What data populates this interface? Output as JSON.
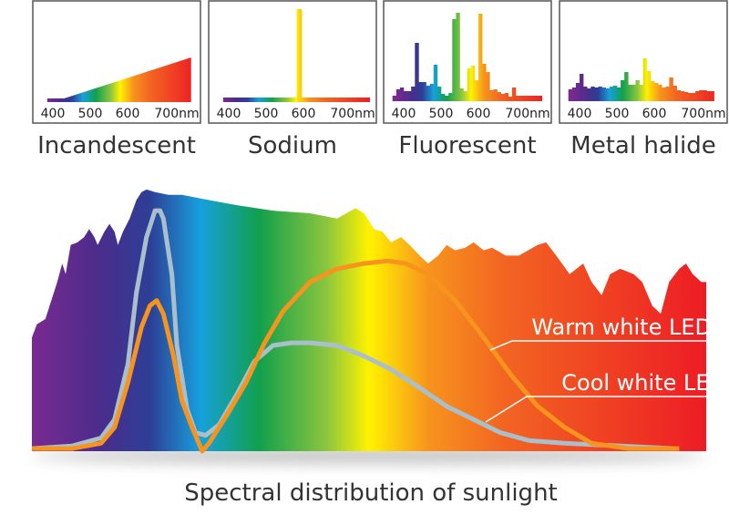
{
  "colors": {
    "spectrum": [
      {
        "nm": 380,
        "color": "#7a2a8f"
      },
      {
        "nm": 420,
        "color": "#4b2c8c"
      },
      {
        "nm": 450,
        "color": "#2d3f96"
      },
      {
        "nm": 480,
        "color": "#17a0dc"
      },
      {
        "nm": 515,
        "color": "#12a04c"
      },
      {
        "nm": 555,
        "color": "#8cc63f"
      },
      {
        "nm": 580,
        "color": "#fff200"
      },
      {
        "nm": 615,
        "color": "#f7941d"
      },
      {
        "nm": 660,
        "color": "#f26522"
      },
      {
        "nm": 780,
        "color": "#ed1c24"
      }
    ],
    "warm_led": "#f7941d",
    "cool_led": "#a9bfcc",
    "panel_border": "#555555"
  },
  "chart_data": [
    {
      "type": "area",
      "title": "Incandescent",
      "x_unit": "nm",
      "xticks": [
        "400",
        "500",
        "600",
        "700nm"
      ],
      "xtick_values": [
        400,
        500,
        600,
        700
      ],
      "points": [
        [
          380,
          0
        ],
        [
          430,
          0
        ],
        [
          780,
          45
        ]
      ]
    },
    {
      "type": "area",
      "title": "Sodium",
      "x_unit": "nm",
      "xticks": [
        "400",
        "500",
        "600",
        "700nm"
      ],
      "xtick_values": [
        400,
        500,
        600,
        700
      ],
      "points": [
        [
          380,
          0
        ],
        [
          582,
          0
        ],
        [
          582,
          98
        ],
        [
          596,
          98
        ],
        [
          596,
          0
        ],
        [
          780,
          0
        ]
      ]
    },
    {
      "type": "bar",
      "title": "Fluorescent",
      "x_unit": "nm",
      "xticks": [
        "400",
        "500",
        "600",
        "700nm"
      ],
      "xtick_values": [
        400,
        500,
        600,
        700
      ],
      "bin_start": 370,
      "bin_width": 10,
      "values": [
        3,
        10,
        12,
        8,
        8,
        13,
        61,
        18,
        18,
        14,
        16,
        37,
        13,
        5,
        3,
        6,
        87,
        94,
        11,
        8,
        33,
        36,
        20,
        93,
        38,
        29,
        9,
        10,
        7,
        5,
        6,
        2,
        12,
        3,
        3,
        3,
        3,
        3,
        3,
        3
      ]
    },
    {
      "type": "bar",
      "title": "Metal halide",
      "x_unit": "nm",
      "xticks": [
        "400",
        "500",
        "600",
        "700nm"
      ],
      "xtick_values": [
        400,
        500,
        600,
        700
      ],
      "bin_start": 370,
      "bin_width": 10,
      "values": [
        10,
        12,
        17,
        27,
        13,
        11,
        13,
        12,
        13,
        12,
        11,
        13,
        14,
        12,
        20,
        29,
        15,
        15,
        20,
        15,
        44,
        30,
        19,
        17,
        15,
        12,
        13,
        23,
        14,
        9,
        8,
        7,
        6,
        6,
        8,
        9,
        9,
        8,
        8
      ]
    },
    {
      "type": "area",
      "title": "Spectral distribution of sunlight",
      "x_unit": "nm",
      "xlim": [
        380,
        780
      ],
      "ylim": [
        0,
        100
      ],
      "sunlight": [
        [
          380,
          0
        ],
        [
          380,
          43
        ],
        [
          383,
          48
        ],
        [
          388,
          50
        ],
        [
          395,
          64
        ],
        [
          398,
          71
        ],
        [
          400,
          67
        ],
        [
          403,
          78
        ],
        [
          407,
          79
        ],
        [
          411,
          81
        ],
        [
          414,
          84
        ],
        [
          417,
          81
        ],
        [
          419,
          78
        ],
        [
          423,
          83
        ],
        [
          426,
          86
        ],
        [
          429,
          83
        ],
        [
          431,
          78
        ],
        [
          434,
          83
        ],
        [
          438,
          88
        ],
        [
          442,
          95
        ],
        [
          445,
          98
        ],
        [
          448,
          99
        ],
        [
          453,
          98
        ],
        [
          461,
          97
        ],
        [
          469,
          97
        ],
        [
          485,
          95
        ],
        [
          502,
          93
        ],
        [
          523,
          91
        ],
        [
          545,
          90
        ],
        [
          561,
          88
        ],
        [
          572,
          92
        ],
        [
          577,
          90
        ],
        [
          583,
          84
        ],
        [
          588,
          83
        ],
        [
          593,
          79
        ],
        [
          599,
          81
        ],
        [
          604,
          78
        ],
        [
          610,
          74
        ],
        [
          615,
          71
        ],
        [
          621,
          74
        ],
        [
          626,
          78
        ],
        [
          631,
          76
        ],
        [
          637,
          77
        ],
        [
          642,
          79
        ],
        [
          648,
          76
        ],
        [
          653,
          77
        ],
        [
          661,
          74
        ],
        [
          669,
          74
        ],
        [
          680,
          78
        ],
        [
          685,
          79
        ],
        [
          691,
          74
        ],
        [
          699,
          67
        ],
        [
          707,
          71
        ],
        [
          712,
          64
        ],
        [
          718,
          59
        ],
        [
          723,
          67
        ],
        [
          729,
          69
        ],
        [
          737,
          67
        ],
        [
          742,
          64
        ],
        [
          748,
          55
        ],
        [
          753,
          52
        ],
        [
          758,
          64
        ],
        [
          764,
          69
        ],
        [
          768,
          71
        ],
        [
          772,
          67
        ],
        [
          777,
          64
        ],
        [
          780,
          64
        ],
        [
          780,
          0
        ]
      ],
      "series": [
        {
          "name": "Warm white LED",
          "points": [
            [
              380,
              1
            ],
            [
              404,
              1
            ],
            [
              421,
              3
            ],
            [
              429,
              9
            ],
            [
              437,
              26
            ],
            [
              445,
              47
            ],
            [
              450,
              55
            ],
            [
              454,
              57
            ],
            [
              458,
              52
            ],
            [
              464,
              36
            ],
            [
              469,
              19
            ],
            [
              475,
              9
            ],
            [
              479,
              3
            ],
            [
              481,
              0
            ],
            [
              485,
              3
            ],
            [
              496,
              14
            ],
            [
              507,
              26
            ],
            [
              518,
              41
            ],
            [
              529,
              53
            ],
            [
              545,
              64
            ],
            [
              561,
              69
            ],
            [
              577,
              71
            ],
            [
              591,
              72
            ],
            [
              602,
              71
            ],
            [
              615,
              67
            ],
            [
              631,
              57
            ],
            [
              648,
              43
            ],
            [
              664,
              29
            ],
            [
              680,
              17
            ],
            [
              696,
              9
            ],
            [
              712,
              3
            ],
            [
              734,
              1
            ],
            [
              764,
              1
            ]
          ]
        },
        {
          "name": "Cool white LED",
          "points": [
            [
              380,
              1
            ],
            [
              404,
              2
            ],
            [
              421,
              5
            ],
            [
              429,
              12
            ],
            [
              437,
              33
            ],
            [
              442,
              60
            ],
            [
              448,
              81
            ],
            [
              453,
              91
            ],
            [
              456,
              91
            ],
            [
              458,
              88
            ],
            [
              463,
              67
            ],
            [
              466,
              40
            ],
            [
              472,
              16
            ],
            [
              477,
              7
            ],
            [
              483,
              6
            ],
            [
              491,
              10
            ],
            [
              502,
              22
            ],
            [
              512,
              34
            ],
            [
              523,
              40
            ],
            [
              534,
              41
            ],
            [
              545,
              41
            ],
            [
              561,
              40
            ],
            [
              577,
              36
            ],
            [
              593,
              31
            ],
            [
              610,
              24
            ],
            [
              626,
              17
            ],
            [
              642,
              12
            ],
            [
              658,
              7
            ],
            [
              675,
              4
            ],
            [
              696,
              3
            ],
            [
              729,
              2
            ],
            [
              761,
              1
            ]
          ]
        }
      ]
    }
  ]
}
